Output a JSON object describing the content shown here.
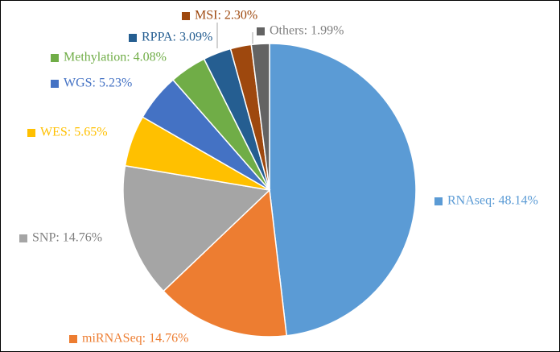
{
  "chart_data": {
    "type": "pie",
    "labels": [
      "RNAseq: 48.14%",
      "miRNASeq: 14.76%",
      "SNP: 14.76%",
      "WES: 5.65%",
      "WGS: 5.23%",
      "Methylation: 4.08%",
      "RPPA: 3.09%",
      "MSI: 2.30%",
      "Others: 1.99%"
    ],
    "values": [
      48.14,
      14.76,
      14.76,
      5.65,
      5.23,
      4.08,
      3.09,
      2.3,
      1.99
    ],
    "colors": [
      "#5b9bd5",
      "#ed7d31",
      "#a5a5a5",
      "#ffc000",
      "#4472c4",
      "#70ad47",
      "#255e91",
      "#9e480e",
      "#636363"
    ]
  }
}
